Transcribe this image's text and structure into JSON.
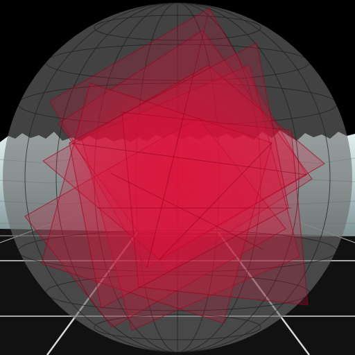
{
  "scene": {
    "kind": "3d-render",
    "background": "#000000",
    "sphere": {
      "fill": "#5c5c5c",
      "grid_color": "#1a1a1a"
    },
    "terrain": {
      "color": "#c9dcdc",
      "shadow": "#8fa6a8"
    },
    "floor": {
      "fill": "#121212",
      "grid_color": "#d8d8d8"
    },
    "planes": {
      "color": "#e0103a",
      "count": 8
    }
  }
}
